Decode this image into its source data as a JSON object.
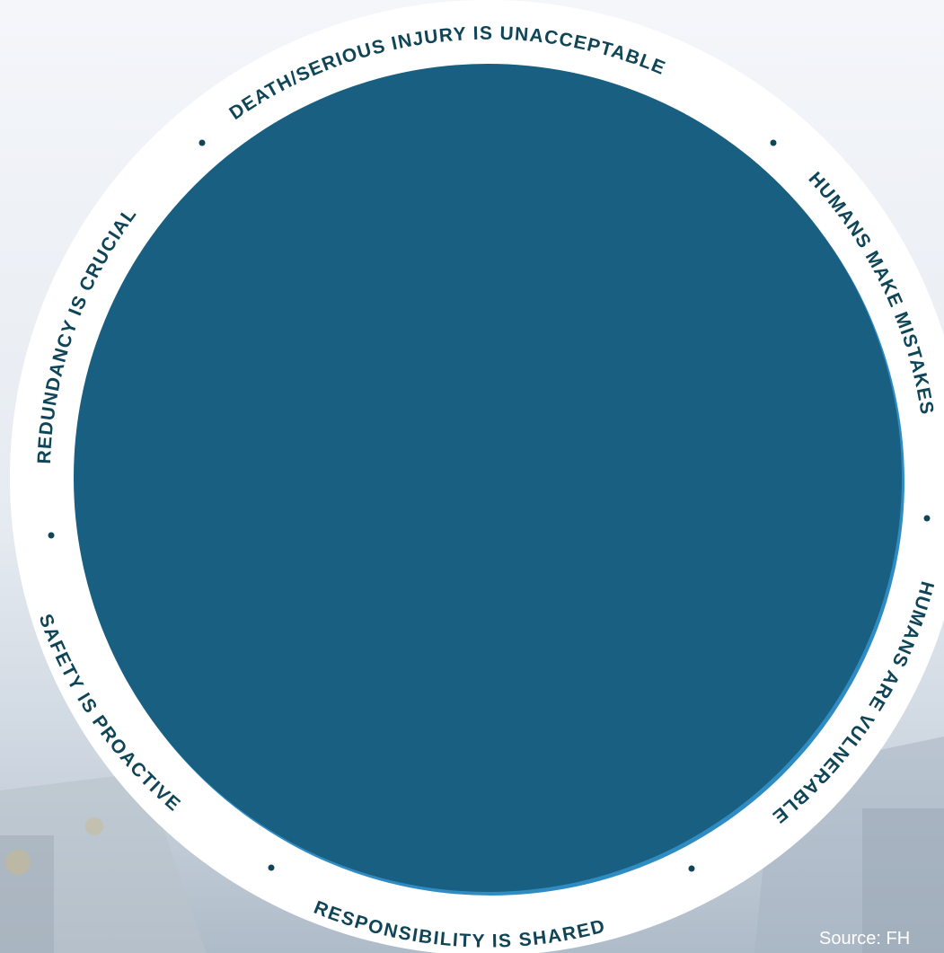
{
  "principles": [
    "DEATH/SERIOUS INJURY IS UNACCEPTABLE",
    "HUMANS MAKE MISTAKES",
    "HUMANS ARE VULNERABLE",
    "RESPONSIBILITY IS SHARED",
    "SAFETY IS PROACTIVE",
    "REDUNDANCY IS CRUCIAL"
  ],
  "source_text": "Source: FH",
  "colors": {
    "circle_fill": "#185f82",
    "circle_shadow": "#2f8cc2",
    "ring": "#ffffff",
    "label": "#0f4557"
  }
}
